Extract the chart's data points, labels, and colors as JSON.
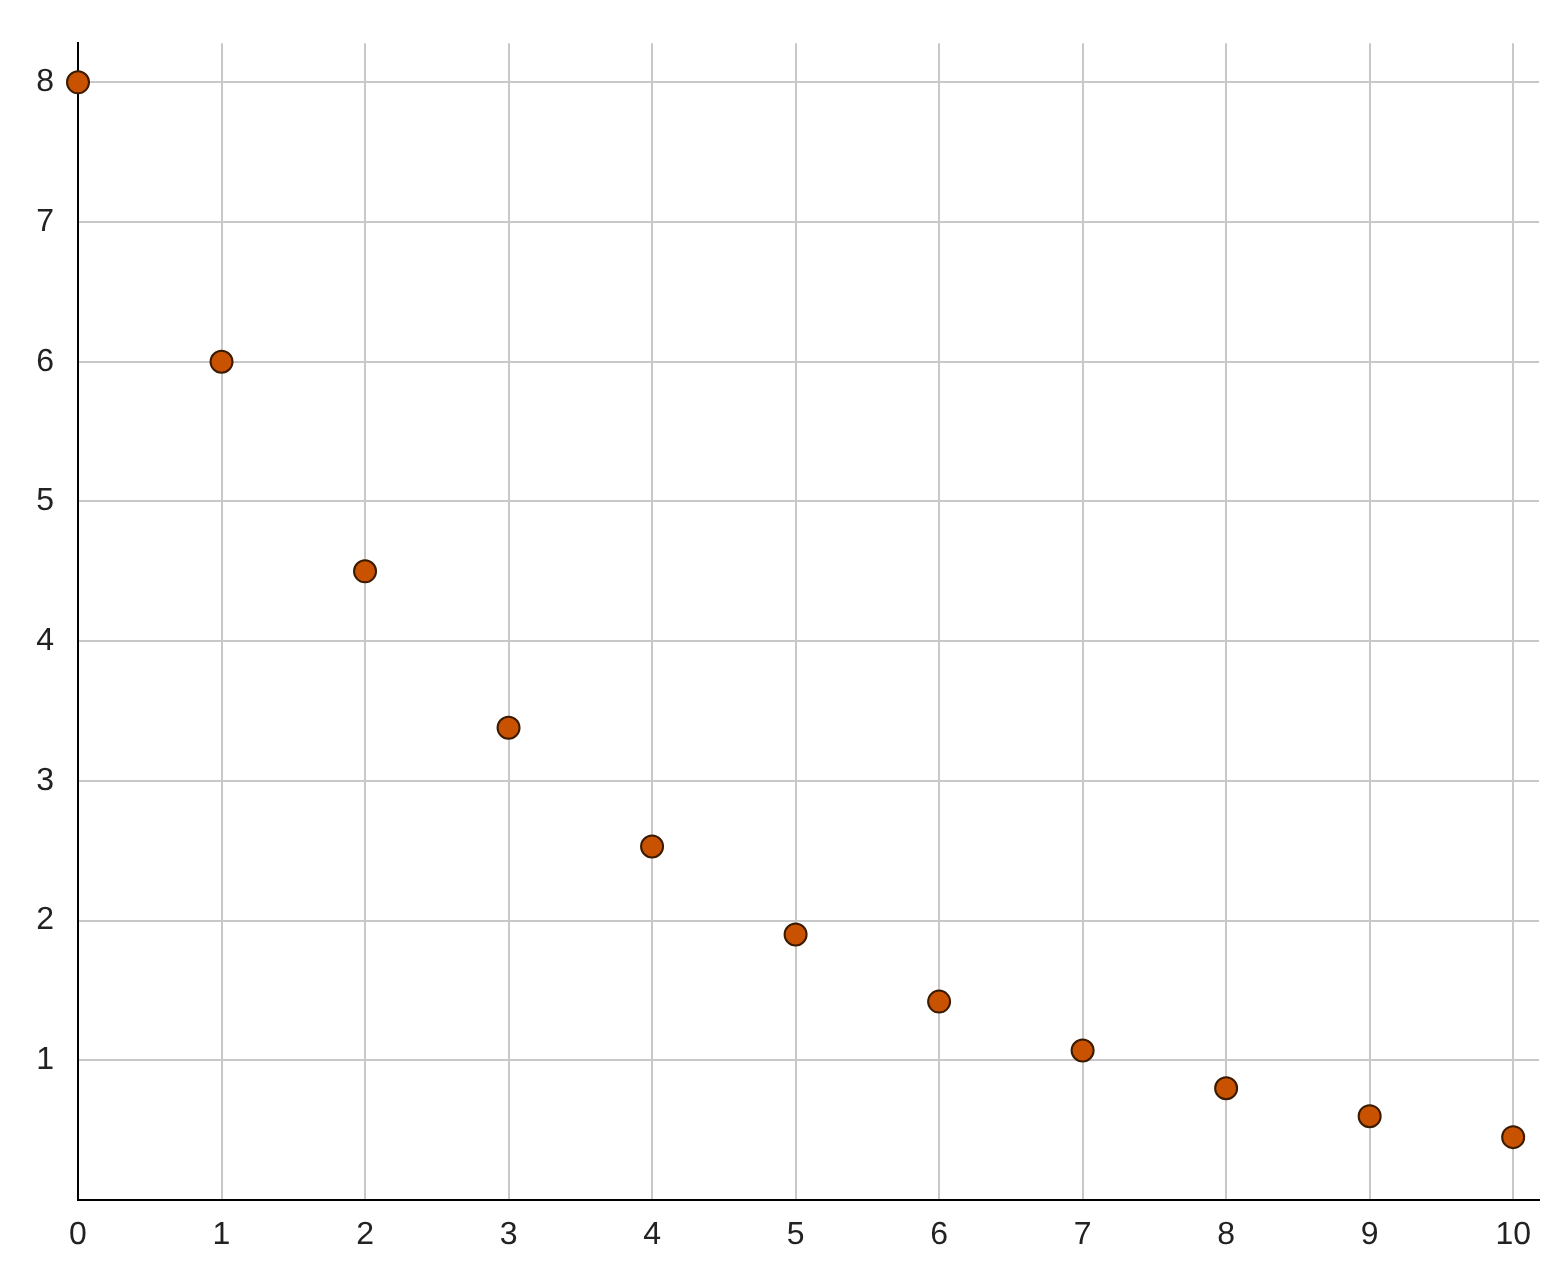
{
  "chart_data": {
    "type": "scatter",
    "x": [
      0,
      1,
      2,
      3,
      4,
      5,
      6,
      7,
      8,
      9,
      10
    ],
    "series": [
      {
        "color": "#c85200",
        "values": [
          8,
          6,
          4.5,
          3.38,
          2.53,
          1.9,
          1.42,
          1.07,
          0.8,
          0.6,
          0.45
        ]
      }
    ],
    "xlim": [
      0,
      10.18
    ],
    "ylim": [
      0,
      8.28
    ],
    "xticks": [
      {
        "value": 0,
        "label": "0"
      },
      1,
      2,
      3,
      4,
      5,
      6,
      7,
      8,
      9,
      10
    ],
    "yticks": [
      {
        "value": 0,
        "label": null
      },
      1,
      2,
      3,
      4,
      5,
      6,
      7,
      8
    ],
    "grid": true,
    "marker": "circle",
    "legend": false
  }
}
